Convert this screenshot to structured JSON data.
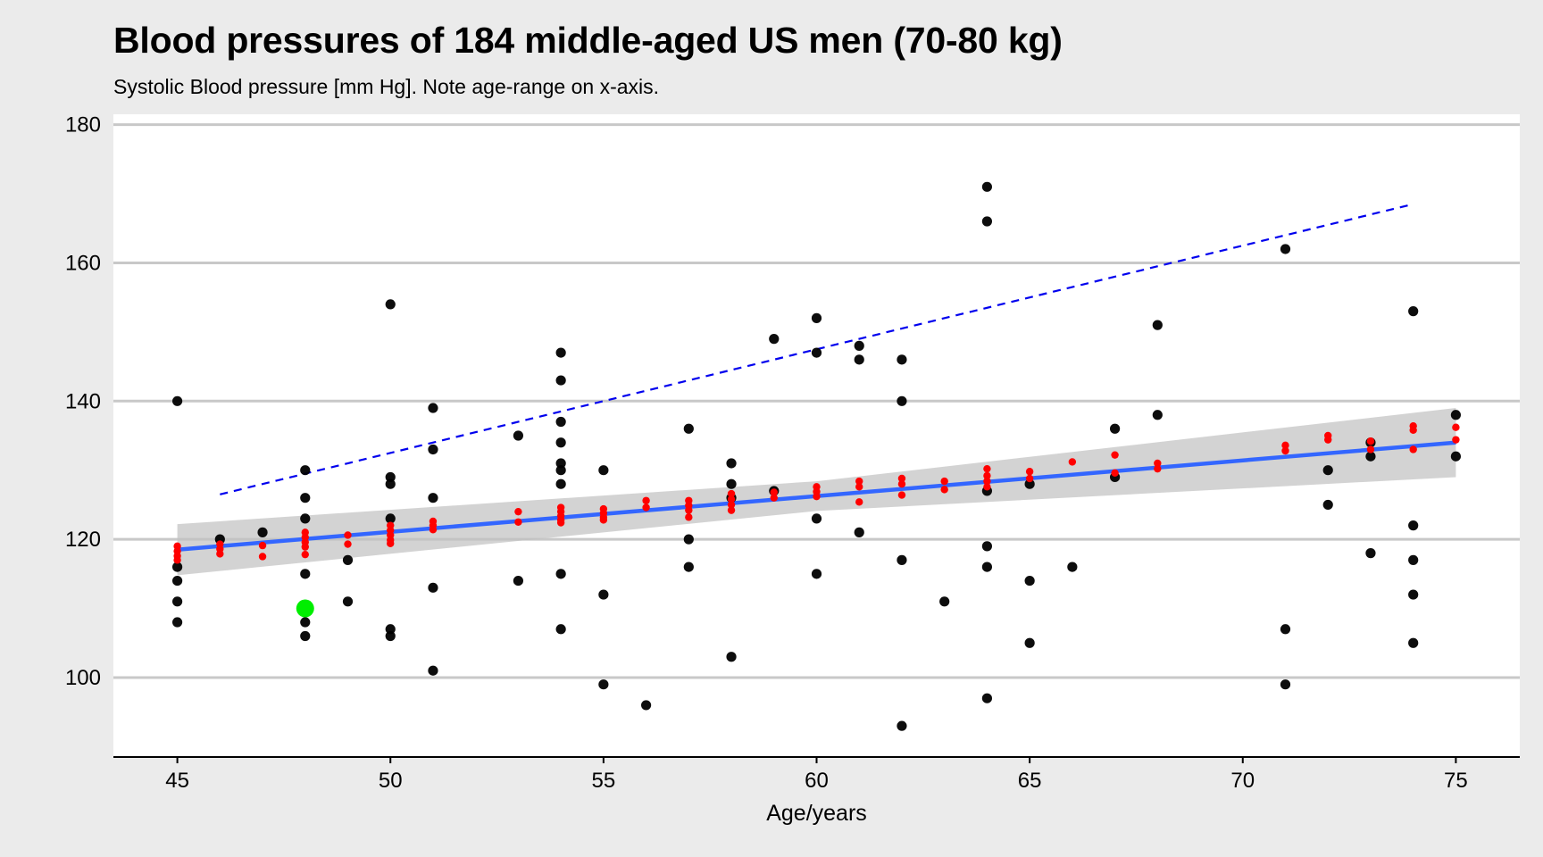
{
  "chart_data": {
    "type": "scatter",
    "title": "Blood pressures of 184 middle-aged US men (70-80 kg)",
    "subtitle": "Systolic Blood pressure [mm Hg]. Note age-range on x-axis.",
    "xlabel": "Age/years",
    "ylabel": "",
    "xlim": [
      43.5,
      76.5
    ],
    "ylim": [
      88.5,
      181.5
    ],
    "xticks": [
      45,
      50,
      55,
      60,
      65,
      70,
      75
    ],
    "yticks": [
      100,
      120,
      140,
      160,
      180
    ],
    "grid": "horizontal major lines",
    "colors": {
      "background": "#ebebeb",
      "panel": "#ffffff",
      "grid": "#c8c8c8",
      "observed": "#000000",
      "fitted": "#ff0000",
      "fit_line": "#3366ff",
      "ribbon": "#c0c0c0",
      "upper_line": "#0000ee",
      "highlight": "#00ee00"
    },
    "observed_points": [
      [
        45,
        140
      ],
      [
        45,
        116
      ],
      [
        45,
        114
      ],
      [
        45,
        111
      ],
      [
        45,
        108
      ],
      [
        46,
        120
      ],
      [
        47,
        121
      ],
      [
        48,
        130
      ],
      [
        48,
        126
      ],
      [
        48,
        123
      ],
      [
        48,
        115
      ],
      [
        48,
        108
      ],
      [
        48,
        106
      ],
      [
        49,
        117
      ],
      [
        49,
        111
      ],
      [
        50,
        154
      ],
      [
        50,
        129
      ],
      [
        50,
        128
      ],
      [
        50,
        123
      ],
      [
        50,
        107
      ],
      [
        50,
        106
      ],
      [
        51,
        139
      ],
      [
        51,
        133
      ],
      [
        51,
        126
      ],
      [
        51,
        113
      ],
      [
        51,
        101
      ],
      [
        53,
        135
      ],
      [
        53,
        114
      ],
      [
        54,
        147
      ],
      [
        54,
        143
      ],
      [
        54,
        137
      ],
      [
        54,
        134
      ],
      [
        54,
        131
      ],
      [
        54,
        130
      ],
      [
        54,
        128
      ],
      [
        54,
        115
      ],
      [
        54,
        107
      ],
      [
        55,
        130
      ],
      [
        55,
        112
      ],
      [
        55,
        99
      ],
      [
        56,
        96
      ],
      [
        57,
        136
      ],
      [
        57,
        120
      ],
      [
        57,
        116
      ],
      [
        58,
        131
      ],
      [
        58,
        128
      ],
      [
        58,
        126
      ],
      [
        58,
        103
      ],
      [
        59,
        149
      ],
      [
        59,
        127
      ],
      [
        60,
        152
      ],
      [
        60,
        147
      ],
      [
        60,
        123
      ],
      [
        60,
        115
      ],
      [
        61,
        148
      ],
      [
        61,
        146
      ],
      [
        61,
        121
      ],
      [
        62,
        146
      ],
      [
        62,
        140
      ],
      [
        62,
        117
      ],
      [
        62,
        93
      ],
      [
        63,
        111
      ],
      [
        64,
        171
      ],
      [
        64,
        166
      ],
      [
        64,
        127
      ],
      [
        64,
        119
      ],
      [
        64,
        116
      ],
      [
        64,
        97
      ],
      [
        65,
        128
      ],
      [
        65,
        114
      ],
      [
        65,
        105
      ],
      [
        66,
        116
      ],
      [
        67,
        136
      ],
      [
        67,
        129
      ],
      [
        68,
        151
      ],
      [
        68,
        138
      ],
      [
        71,
        162
      ],
      [
        71,
        107
      ],
      [
        71,
        99
      ],
      [
        72,
        130
      ],
      [
        72,
        125
      ],
      [
        73,
        134
      ],
      [
        73,
        132
      ],
      [
        73,
        118
      ],
      [
        74,
        153
      ],
      [
        74,
        122
      ],
      [
        74,
        117
      ],
      [
        74,
        112
      ],
      [
        74,
        105
      ],
      [
        75,
        138
      ],
      [
        75,
        132
      ]
    ],
    "fitted_points": [
      [
        45,
        119
      ],
      [
        45,
        118.3
      ],
      [
        45,
        117.6
      ],
      [
        45,
        117
      ],
      [
        46,
        119.3
      ],
      [
        46,
        118.6
      ],
      [
        46,
        117.9
      ],
      [
        47,
        119.1
      ],
      [
        47,
        117.5
      ],
      [
        48,
        121
      ],
      [
        48,
        120.3
      ],
      [
        48,
        119.6
      ],
      [
        48,
        118.9
      ],
      [
        48,
        117.8
      ],
      [
        49,
        120.6
      ],
      [
        49,
        119.3
      ],
      [
        50,
        122
      ],
      [
        50,
        121.3
      ],
      [
        50,
        120.6
      ],
      [
        50,
        119.9
      ],
      [
        50,
        119.4
      ],
      [
        51,
        122.6
      ],
      [
        51,
        122
      ],
      [
        51,
        121.4
      ],
      [
        53,
        124
      ],
      [
        53,
        122.5
      ],
      [
        54,
        124.6
      ],
      [
        54,
        124
      ],
      [
        54,
        123.4
      ],
      [
        54,
        122.8
      ],
      [
        54,
        122.4
      ],
      [
        55,
        124.4
      ],
      [
        55,
        123.8
      ],
      [
        55,
        123.2
      ],
      [
        55,
        122.8
      ],
      [
        56,
        125.6
      ],
      [
        56,
        124.6
      ],
      [
        57,
        125.6
      ],
      [
        57,
        124.9
      ],
      [
        57,
        124.2
      ],
      [
        57,
        123.2
      ],
      [
        58,
        126.6
      ],
      [
        58,
        125.8
      ],
      [
        58,
        125
      ],
      [
        58,
        124.2
      ],
      [
        59,
        126.8
      ],
      [
        59,
        126
      ],
      [
        60,
        127.6
      ],
      [
        60,
        126.9
      ],
      [
        60,
        126.2
      ],
      [
        61,
        128.4
      ],
      [
        61,
        127.6
      ],
      [
        61,
        125.4
      ],
      [
        62,
        128.8
      ],
      [
        62,
        128
      ],
      [
        62,
        126.4
      ],
      [
        63,
        128.4
      ],
      [
        63,
        127.2
      ],
      [
        64,
        130.2
      ],
      [
        64,
        129.2
      ],
      [
        64,
        128.4
      ],
      [
        64,
        127.6
      ],
      [
        65,
        129.8
      ],
      [
        65,
        128.8
      ],
      [
        66,
        131.2
      ],
      [
        67,
        132.2
      ],
      [
        67,
        129.6
      ],
      [
        68,
        131
      ],
      [
        68,
        130.2
      ],
      [
        71,
        133.6
      ],
      [
        71,
        132.8
      ],
      [
        72,
        135
      ],
      [
        72,
        134.4
      ],
      [
        73,
        134.2
      ],
      [
        73,
        133
      ],
      [
        74,
        136.4
      ],
      [
        74,
        135.8
      ],
      [
        74,
        133
      ],
      [
        75,
        136.2
      ],
      [
        75,
        134.4
      ]
    ],
    "highlight_point": [
      48,
      110
    ],
    "fit_line": {
      "from": [
        45,
        118.5
      ],
      "to": [
        75,
        134
      ]
    },
    "confidence_band": [
      [
        45,
        114.8,
        122.2
      ],
      [
        60,
        124.1,
        128.4
      ],
      [
        75,
        129,
        139
      ]
    ],
    "upper_line": {
      "from": [
        46,
        126.5
      ],
      "to": [
        74,
        168.5
      ]
    }
  }
}
